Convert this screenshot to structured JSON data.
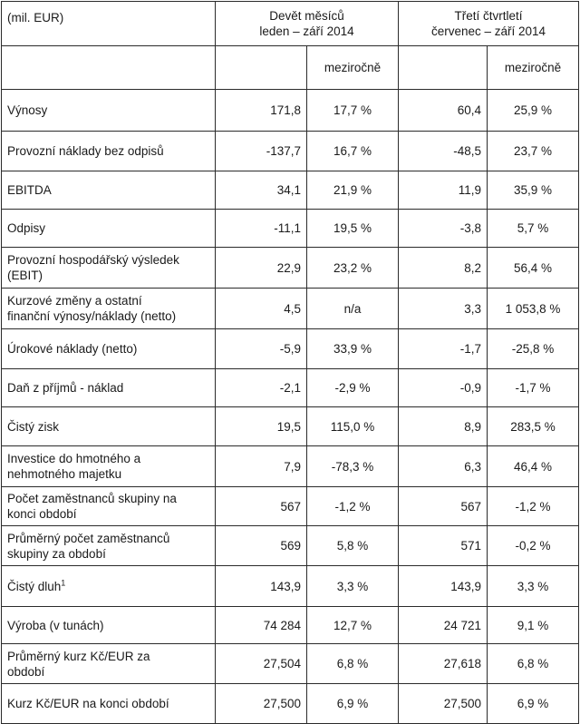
{
  "header": {
    "unit": "(mil. EUR)",
    "period1_line1": "Devět měsíců",
    "period1_line2": "leden – září 2014",
    "period2_line1": "Třetí čtvrtletí",
    "period2_line2": "červenec – září 2014",
    "yoy_label": "meziročně"
  },
  "rows": [
    {
      "label_1": "Výnosy",
      "label_2": "",
      "v1": "171,8",
      "p1": "17,7 %",
      "v2": "60,4",
      "p2": "25,9 %"
    },
    {
      "label_1": "Provozní náklady bez odpisů",
      "label_2": "",
      "v1": "-137,7",
      "p1": "16,7 %",
      "v2": "-48,5",
      "p2": "23,7 %"
    },
    {
      "label_1": "EBITDA",
      "label_2": "",
      "v1": "34,1",
      "p1": "21,9 %",
      "v2": "11,9",
      "p2": "35,9 %"
    },
    {
      "label_1": "Odpisy",
      "label_2": "",
      "v1": "-11,1",
      "p1": "19,5 %",
      "v2": "-3,8",
      "p2": "5,7 %"
    },
    {
      "label_1": "Provozní hospodářský výsledek",
      "label_2": "(EBIT)",
      "v1": "22,9",
      "p1": "23,2 %",
      "v2": "8,2",
      "p2": "56,4 %"
    },
    {
      "label_1": "Kurzové změny a ostatní",
      "label_2": "finanční výnosy/náklady (netto)",
      "v1": "4,5",
      "p1": "n/a",
      "v2": "3,3",
      "p2": "1 053,8 %"
    },
    {
      "label_1": "Úrokové náklady (netto)",
      "label_2": "",
      "v1": "-5,9",
      "p1": "33,9 %",
      "v2": "-1,7",
      "p2": "-25,8 %"
    },
    {
      "label_1": "Daň z příjmů - náklad",
      "label_2": "",
      "v1": "-2,1",
      "p1": "-2,9 %",
      "v2": "-0,9",
      "p2": "-1,7 %"
    },
    {
      "label_1": "Čistý zisk",
      "label_2": "",
      "v1": "19,5",
      "p1": "115,0 %",
      "v2": "8,9",
      "p2": "283,5 %"
    },
    {
      "label_1": "Investice do hmotného a",
      "label_2": "nehmotného majetku",
      "v1": "7,9",
      "p1": "-78,3 %",
      "v2": "6,3",
      "p2": "46,4 %"
    },
    {
      "label_1": "Počet zaměstnanců skupiny na",
      "label_2": "konci období",
      "v1": "567",
      "p1": "-1,2 %",
      "v2": "567",
      "p2": "-1,2 %"
    },
    {
      "label_1": "Průměrný počet zaměstnanců",
      "label_2": "skupiny za období",
      "v1": "569",
      "p1": "5,8 %",
      "v2": "571",
      "p2": "-0,2 %"
    },
    {
      "label_1": "Čistý dluh",
      "label_2": "",
      "v1": "143,9",
      "p1": "3,3 %",
      "v2": "143,9",
      "p2": "3,3 %",
      "footnote": "1"
    },
    {
      "label_1": "Výroba (v tunách)",
      "label_2": "",
      "v1": "74 284",
      "p1": "12,7 %",
      "v2": "24 721",
      "p2": "9,1 %"
    },
    {
      "label_1": "Průměrný kurz Kč/EUR za",
      "label_2": "období",
      "v1": "27,504",
      "p1": "6,8 %",
      "v2": "27,618",
      "p2": "6,8 %"
    },
    {
      "label_1": "Kurz Kč/EUR na konci období",
      "label_2": "",
      "v1": "27,500",
      "p1": "6,9 %",
      "v2": "27,500",
      "p2": "6,9 %"
    }
  ]
}
